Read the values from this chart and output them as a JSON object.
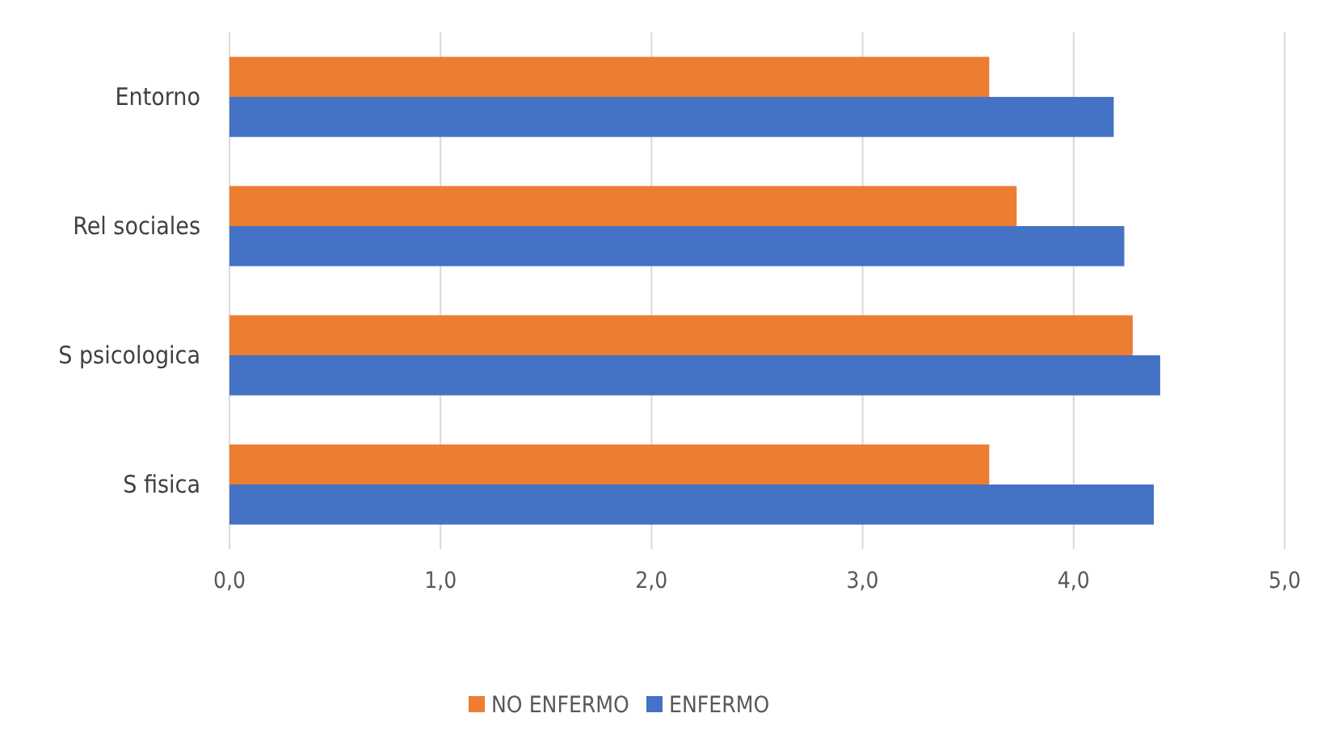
{
  "chart_data": {
    "type": "bar",
    "orientation": "horizontal",
    "categories": [
      "Entorno",
      "Rel sociales",
      "S psicologica",
      "S fisica"
    ],
    "series": [
      {
        "name": "NO ENFERMO",
        "color": "#ed7d31",
        "values": [
          3.6,
          3.73,
          4.28,
          3.6
        ]
      },
      {
        "name": "ENFERMO",
        "color": "#4472c4",
        "values": [
          4.19,
          4.24,
          4.41,
          4.38
        ]
      }
    ],
    "xlim": [
      0,
      5
    ],
    "xticks": [
      {
        "value": 0,
        "label": "0,0"
      },
      {
        "value": 1,
        "label": "1,0"
      },
      {
        "value": 2,
        "label": "2,0"
      },
      {
        "value": 3,
        "label": "3,0"
      },
      {
        "value": 4,
        "label": "4,0"
      },
      {
        "value": 5,
        "label": "5,0"
      }
    ],
    "grid": "x",
    "legend": "bottom"
  }
}
